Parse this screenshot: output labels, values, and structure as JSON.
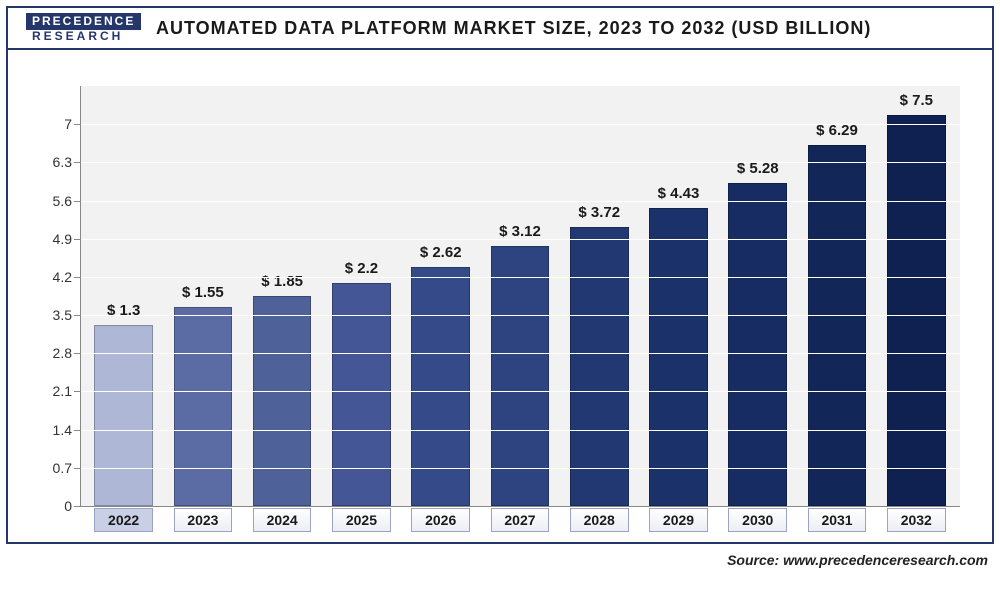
{
  "logo": {
    "top": "PRECEDENCE",
    "bottom": "RESEARCH"
  },
  "chart": {
    "type": "bar",
    "title": "AUTOMATED DATA PLATFORM MARKET SIZE, 2023 TO 2032 (USD BILLION)",
    "title_fontsize": 18,
    "background_color": "#ffffff",
    "plot_background_color": "#f2f2f2",
    "grid_color": "#ffffff",
    "frame_color": "#24366a",
    "bar_width": 0.74,
    "label_fontsize": 15,
    "xlabel_fontsize": 14,
    "ytick_fontsize": 14,
    "ylim": [
      0,
      7.7
    ],
    "y_ticks": [
      0,
      0.7,
      1.4,
      2.1,
      2.8,
      3.5,
      4.2,
      4.9,
      5.6,
      6.3,
      7
    ],
    "y_tick_labels": [
      "0",
      "0.7",
      "1.4",
      "2.1",
      "2.8",
      "3.5",
      "4.2",
      "4.9",
      "5.6",
      "6.3",
      "7"
    ],
    "categories": [
      "2022",
      "2023",
      "2024",
      "2025",
      "2026",
      "2027",
      "2028",
      "2029",
      "2030",
      "2031",
      "2032"
    ],
    "value_labels": [
      "$ 1.3",
      "$ 1.55",
      "$ 1.85",
      "$ 2.2",
      "$ 2.62",
      "$ 3.12",
      "$ 3.72",
      "$ 4.43",
      "$ 5.28",
      "$ 6.29",
      "$ 7.5"
    ],
    "bar_heights_pct": [
      43.0,
      47.5,
      50.0,
      53.0,
      57.0,
      62.0,
      66.5,
      71.0,
      77.0,
      86.0,
      93.0
    ],
    "bar_colors": [
      "#aeb7d6",
      "#5a6ca3",
      "#4f6199",
      "#445695",
      "#354a89",
      "#2e4480",
      "#213872",
      "#1a3169",
      "#162c62",
      "#122657",
      "#0f2150"
    ],
    "x_badge_border": "#9aa3c2",
    "highlight_index": 0,
    "highlight_badge_bg": "#c9d0e6"
  },
  "source": "Source: www.precedenceresearch.com"
}
